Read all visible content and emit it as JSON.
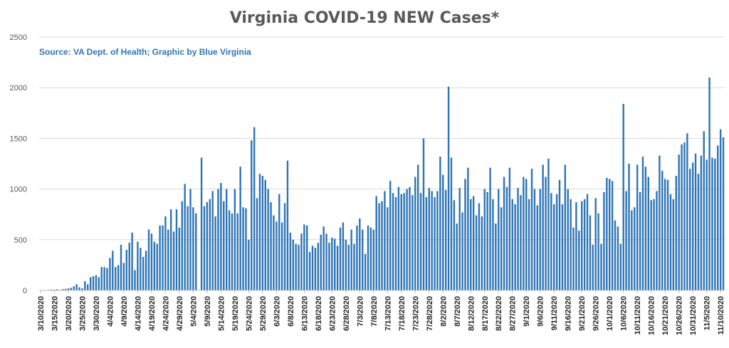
{
  "chart_data": {
    "type": "bar",
    "title": "Virginia COVID-19 NEW Cases*",
    "annotation": "Source: VA Dept. of Health; Graphic by Blue Virginia",
    "ylim": [
      0,
      2500
    ],
    "yticks": [
      0,
      500,
      1000,
      1500,
      2000,
      2500
    ],
    "grid": true,
    "legend": "none",
    "xlabel": "",
    "ylabel": "",
    "tick_labels": [
      "3/10/2020",
      "3/15/2020",
      "3/20/2020",
      "3/25/2020",
      "3/30/2020",
      "4/4/2020",
      "4/9/2020",
      "4/14/2020",
      "4/19/2020",
      "4/24/2020",
      "4/29/2020",
      "5/4/2020",
      "5/9/2020",
      "5/14/2020",
      "5/19/2020",
      "5/24/2020",
      "5/29/2020",
      "6/3/2020",
      "6/8/2020",
      "6/13/2020",
      "6/18/2020",
      "6/23/2020",
      "6/28/2020",
      "7/3/2020",
      "7/8/2020",
      "7/13/2020",
      "7/18/2020",
      "7/23/2020",
      "7/28/2020",
      "8/2/2020",
      "8/7/2020",
      "8/12/2020",
      "8/17/2020",
      "8/22/2020",
      "8/27/2020",
      "9/1/2020",
      "9/6/2020",
      "9/11/2020",
      "9/16/2020",
      "9/21/2020",
      "9/26/2020",
      "10/1/2020",
      "10/6/2020",
      "10/11/2020",
      "10/16/2020",
      "10/21/2020",
      "10/26/2020",
      "10/31/2020",
      "11/5/2020",
      "11/10/2020"
    ],
    "values": [
      2,
      2,
      3,
      5,
      8,
      6,
      10,
      5,
      12,
      15,
      20,
      25,
      40,
      60,
      30,
      20,
      90,
      60,
      130,
      140,
      150,
      130,
      230,
      230,
      220,
      320,
      390,
      230,
      250,
      450,
      270,
      400,
      470,
      570,
      200,
      480,
      420,
      330,
      390,
      600,
      560,
      480,
      460,
      640,
      640,
      730,
      600,
      800,
      580,
      800,
      620,
      880,
      1050,
      830,
      1000,
      820,
      760,
      0,
      1310,
      830,
      870,
      900,
      980,
      730,
      1000,
      1060,
      880,
      1000,
      790,
      760,
      1000,
      760,
      1220,
      820,
      810,
      500,
      1480,
      1610,
      910,
      1150,
      1130,
      1090,
      1000,
      870,
      740,
      680,
      950,
      670,
      860,
      1280,
      570,
      500,
      460,
      450,
      560,
      650,
      640,
      380,
      440,
      420,
      470,
      550,
      630,
      560,
      470,
      520,
      510,
      440,
      620,
      670,
      500,
      450,
      600,
      460,
      640,
      710,
      600,
      360,
      640,
      620,
      600,
      930,
      860,
      880,
      980,
      820,
      1080,
      960,
      920,
      1020,
      950,
      960,
      1000,
      1020,
      940,
      1120,
      1240,
      960,
      1500,
      920,
      1010,
      980,
      920,
      980,
      1320,
      1140,
      990,
      2010,
      1310,
      890,
      660,
      1010,
      770,
      1100,
      1210,
      900,
      930,
      740,
      860,
      730,
      1000,
      970,
      1210,
      900,
      660,
      1000,
      820,
      1120,
      1020,
      1210,
      900,
      850,
      1010,
      940,
      1120,
      1100,
      900,
      1200,
      1000,
      840,
      1000,
      1240,
      1120,
      1300,
      960,
      850,
      950,
      1090,
      850,
      1240,
      1000,
      900,
      620,
      870,
      590,
      880,
      900,
      950,
      740,
      450,
      910,
      760,
      460,
      970,
      1110,
      1100,
      1080,
      690,
      630,
      460,
      1840,
      980,
      1250,
      790,
      820,
      1240,
      970,
      1320,
      1220,
      1120,
      890,
      900,
      980,
      1330,
      1180,
      1100,
      1090,
      950,
      900,
      1130,
      1340,
      1440,
      1460,
      1550,
      1200,
      1260,
      1350,
      1150,
      1330,
      1570,
      1290,
      2100,
      1310,
      1300,
      1430,
      1590,
      1510
    ]
  }
}
